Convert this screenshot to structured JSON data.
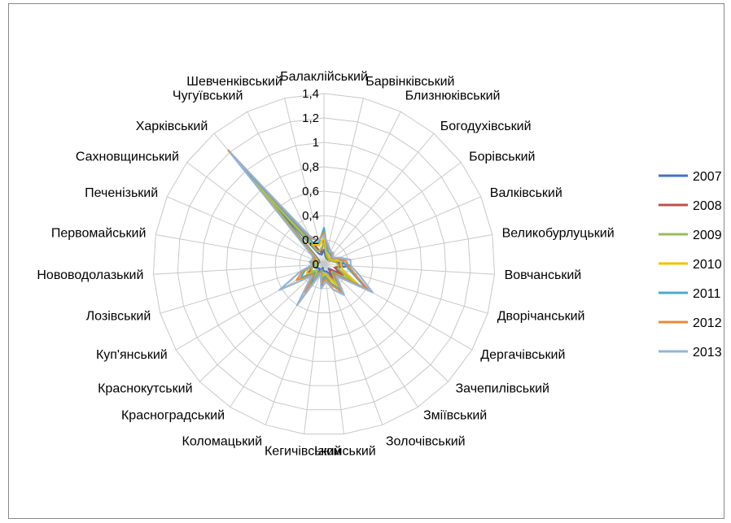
{
  "chart_data": {
    "type": "radar",
    "title": "",
    "categories": [
      "Балаклійський",
      "Барвінківський",
      "Близнюківський",
      "Богодухівський",
      "Борівський",
      "Валківський",
      "Великобурлуцький",
      "Вовчанський",
      "Дворічанський",
      "Дергачівський",
      "Зачепилівський",
      "Зміївський",
      "Золочівський",
      "Ізюмський",
      "Кегичівський",
      "Коломацький",
      "Красноградський",
      "Краснокутський",
      "Куп'янський",
      "Лозівський",
      "Нововодолазький",
      "Первомайський",
      "Печенізький",
      "Сахновщинський",
      "Харківський",
      "Чугуївський",
      "Шевченківський"
    ],
    "rlim": [
      0,
      1.4
    ],
    "ticks": [
      0,
      0.2,
      0.4,
      0.6,
      0.8,
      1,
      1.2,
      1.4
    ],
    "tick_labels": [
      "0",
      "0,2",
      "0,4",
      "0,6",
      "0,8",
      "1",
      "1,2",
      "1,4"
    ],
    "grid": true,
    "legend_position": "right",
    "series": [
      {
        "name": "2007",
        "color": "#4472C4",
        "values": [
          0.12,
          0.06,
          0.05,
          0.06,
          0.05,
          0.08,
          0.12,
          0.22,
          0.1,
          0.14,
          0.05,
          0.12,
          0.06,
          0.06,
          0.05,
          0.03,
          0.08,
          0.05,
          0.06,
          0.08,
          0.05,
          0.06,
          0.04,
          0.05,
          0.65,
          0.1,
          0.08
        ]
      },
      {
        "name": "2008",
        "color": "#C0504D",
        "values": [
          0.2,
          0.1,
          0.06,
          0.05,
          0.05,
          0.08,
          0.1,
          0.15,
          0.09,
          0.18,
          0.06,
          0.14,
          0.1,
          0.08,
          0.18,
          0.05,
          0.18,
          0.08,
          0.16,
          0.1,
          0.06,
          0.07,
          0.06,
          0.06,
          0.78,
          0.18,
          0.1
        ]
      },
      {
        "name": "2009",
        "color": "#9BBB59",
        "values": [
          0.18,
          0.08,
          0.06,
          0.06,
          0.05,
          0.07,
          0.1,
          0.12,
          0.12,
          0.26,
          0.09,
          0.18,
          0.1,
          0.07,
          0.09,
          0.05,
          0.12,
          0.07,
          0.12,
          0.1,
          0.05,
          0.06,
          0.05,
          0.07,
          0.9,
          0.12,
          0.12
        ]
      },
      {
        "name": "2010",
        "color": "#F2C200",
        "values": [
          0.22,
          0.1,
          0.08,
          0.07,
          0.07,
          0.09,
          0.14,
          0.14,
          0.16,
          0.32,
          0.09,
          0.22,
          0.12,
          0.08,
          0.1,
          0.06,
          0.18,
          0.09,
          0.16,
          0.14,
          0.07,
          0.08,
          0.06,
          0.08,
          1.05,
          0.18,
          0.16
        ]
      },
      {
        "name": "2011",
        "color": "#4BACC6",
        "values": [
          0.3,
          0.12,
          0.1,
          0.09,
          0.08,
          0.12,
          0.16,
          0.18,
          0.24,
          0.4,
          0.1,
          0.26,
          0.16,
          0.1,
          0.14,
          0.06,
          0.2,
          0.1,
          0.22,
          0.16,
          0.08,
          0.09,
          0.07,
          0.1,
          1.15,
          0.2,
          0.18
        ]
      },
      {
        "name": "2012",
        "color": "#E68B3A",
        "values": [
          0.26,
          0.14,
          0.12,
          0.1,
          0.08,
          0.12,
          0.18,
          0.2,
          0.26,
          0.42,
          0.12,
          0.28,
          0.18,
          0.12,
          0.16,
          0.07,
          0.28,
          0.12,
          0.26,
          0.18,
          0.09,
          0.1,
          0.08,
          0.11,
          1.22,
          0.24,
          0.2
        ]
      },
      {
        "name": "2013",
        "color": "#95B3D7",
        "values": [
          0.24,
          0.16,
          0.12,
          0.12,
          0.09,
          0.14,
          0.22,
          0.22,
          0.3,
          0.46,
          0.14,
          0.3,
          0.22,
          0.14,
          0.2,
          0.08,
          0.4,
          0.14,
          0.42,
          0.2,
          0.1,
          0.12,
          0.1,
          0.12,
          1.2,
          0.26,
          0.2
        ]
      }
    ]
  }
}
